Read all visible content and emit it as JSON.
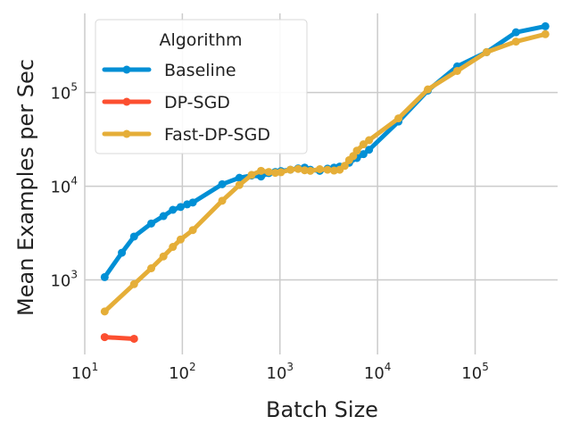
{
  "chart_data": {
    "type": "line",
    "xscale": "log",
    "yscale": "log",
    "xlim": [
      10,
      700000
    ],
    "ylim": [
      160,
      700000
    ],
    "xlabel": "Batch Size",
    "ylabel": "Mean Examples per Sec",
    "grid": true,
    "legend_title": "Algorithm",
    "legend_position": "top-left",
    "x_ticks": [
      {
        "value": 10,
        "base": "10",
        "exp": "1"
      },
      {
        "value": 100,
        "base": "10",
        "exp": "2"
      },
      {
        "value": 1000,
        "base": "10",
        "exp": "3"
      },
      {
        "value": 10000,
        "base": "10",
        "exp": "4"
      },
      {
        "value": 100000,
        "base": "10",
        "exp": "5"
      }
    ],
    "y_ticks": [
      {
        "value": 1000,
        "base": "10",
        "exp": "3"
      },
      {
        "value": 10000,
        "base": "10",
        "exp": "4"
      },
      {
        "value": 100000,
        "base": "10",
        "exp": "5"
      }
    ],
    "series": [
      {
        "name": "Baseline",
        "color": "#008fd5",
        "x": [
          16,
          24,
          32,
          48,
          64,
          80,
          96,
          112,
          128,
          256,
          384,
          512,
          640,
          768,
          896,
          1024,
          1280,
          1536,
          1792,
          2048,
          2560,
          3072,
          3584,
          4096,
          5120,
          6144,
          7168,
          8192,
          16384,
          32768,
          65536,
          131072,
          262144,
          524288
        ],
        "y": [
          1070,
          1950,
          2900,
          4000,
          4800,
          5600,
          6000,
          6400,
          6700,
          10500,
          12300,
          13000,
          12700,
          13800,
          14200,
          14500,
          15000,
          15500,
          15800,
          15000,
          14600,
          15400,
          15800,
          16200,
          17800,
          20000,
          22000,
          24500,
          49000,
          105000,
          190000,
          270000,
          440000,
          510000
        ]
      },
      {
        "name": "DP-SGD",
        "color": "#fc4f30",
        "x": [
          16,
          32
        ],
        "y": [
          245,
          235
        ]
      },
      {
        "name": "Fast-DP-SGD",
        "color": "#e5ae38",
        "x": [
          16,
          32,
          48,
          64,
          80,
          96,
          128,
          256,
          384,
          512,
          640,
          768,
          896,
          1024,
          1280,
          1536,
          1792,
          2048,
          2560,
          3072,
          3584,
          4096,
          4608,
          5120,
          5632,
          6144,
          7168,
          8192,
          16384,
          32768,
          65536,
          131072,
          262144,
          524288
        ],
        "y": [
          460,
          900,
          1330,
          1780,
          2250,
          2700,
          3400,
          7000,
          10300,
          13200,
          14600,
          14200,
          13900,
          14100,
          15000,
          15300,
          14800,
          14600,
          15200,
          15000,
          14700,
          15000,
          16500,
          19000,
          21000,
          24000,
          28000,
          31000,
          53000,
          108000,
          170000,
          270000,
          350000,
          420000
        ]
      }
    ]
  }
}
